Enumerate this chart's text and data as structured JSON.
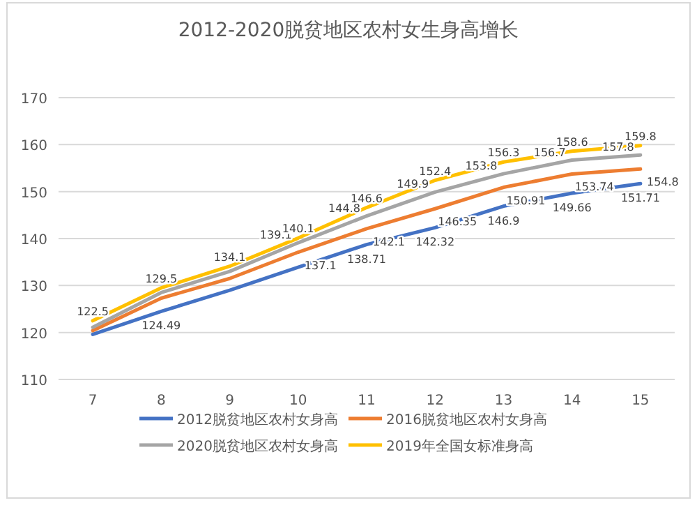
{
  "chart_data": {
    "type": "line",
    "title": "2012-2020脱贫地区农村女生身高增长",
    "categories": [
      "7",
      "8",
      "9",
      "10",
      "11",
      "12",
      "13",
      "14",
      "15"
    ],
    "ylim": [
      110,
      170
    ],
    "yticks": [
      110,
      120,
      130,
      140,
      150,
      160,
      170
    ],
    "grid": "y",
    "legend": "bottom",
    "line_style": "solid",
    "marker": "none",
    "series": [
      {
        "name": "2012脱贫地区农村女身高",
        "color": "#4472c4",
        "values": [
          119.6,
          124.49,
          129,
          133.9,
          138.71,
          142.32,
          146.9,
          149.66,
          151.71
        ],
        "value_labels": [
          null,
          "124.49",
          null,
          null,
          "138.71",
          "142.32",
          "146.9",
          "149.66",
          "151.71"
        ]
      },
      {
        "name": "2016脱贫地区农村女身高",
        "color": "#ed7d31",
        "values": [
          120.4,
          127.3,
          131.5,
          137.1,
          142.1,
          146.35,
          150.91,
          153.74,
          154.8
        ],
        "value_labels": [
          null,
          null,
          null,
          "137.1",
          "142.1",
          "146.35",
          "150.91",
          "153.74",
          "154.8"
        ]
      },
      {
        "name": "2020脱贫地区农村女身高",
        "color": "#a5a5a5",
        "values": [
          121.1,
          128.5,
          133,
          139.1,
          144.8,
          149.9,
          153.8,
          156.7,
          157.8
        ],
        "value_labels": [
          null,
          null,
          null,
          "139.1",
          "144.8",
          "149.9",
          "153.8",
          "156.7",
          "157.8"
        ]
      },
      {
        "name": "2019年全国女标准身高",
        "color": "#ffc000",
        "values": [
          122.5,
          129.5,
          134.1,
          140.1,
          146.6,
          152.4,
          156.3,
          158.6,
          159.8
        ],
        "value_labels": [
          "122.5",
          "129.5",
          "134.1",
          "140.1",
          "146.6",
          "152.4",
          "156.3",
          "158.6",
          "159.8"
        ]
      }
    ]
  }
}
